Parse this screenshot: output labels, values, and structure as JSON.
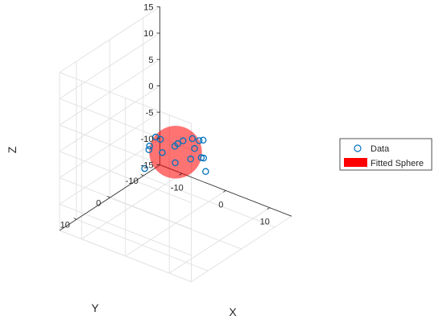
{
  "chart_data": {
    "type": "scatter3d",
    "axes": {
      "x": {
        "label": "X",
        "range": [
          -15,
          15
        ],
        "ticks": [
          -10,
          0,
          10
        ]
      },
      "y": {
        "label": "Y",
        "range": [
          -15,
          15
        ],
        "ticks": [
          -10,
          0,
          10
        ]
      },
      "z": {
        "label": "Z",
        "range": [
          -15,
          15
        ],
        "ticks": [
          -15,
          -10,
          -5,
          0,
          5,
          10,
          15
        ]
      }
    },
    "grid": true,
    "view": {
      "azimuth": -37.5,
      "elevation": 30
    },
    "legend": {
      "placement": "right",
      "entries": [
        {
          "label": "Data",
          "marker": "circle",
          "color": "#0072BD"
        },
        {
          "label": "Fitted Sphere",
          "marker": "patch",
          "color": "#FF0000"
        }
      ]
    },
    "series": [
      {
        "name": "Data",
        "type": "scatter",
        "color": "#0072BD",
        "points": [
          [
            -0.5,
            3.9,
            2.4
          ],
          [
            3.3,
            2.1,
            2.6
          ],
          [
            5.2,
            -0.2,
            2.3
          ],
          [
            -3.8,
            2.8,
            -0.4
          ],
          [
            -2.5,
            4.7,
            0.1
          ],
          [
            1.1,
            0.8,
            0.8
          ],
          [
            4.1,
            -0.3,
            0.4
          ],
          [
            3.6,
            -3.5,
            0.5
          ],
          [
            -4.3,
            0.3,
            0.1
          ],
          [
            -2.5,
            0.7,
            -2.1
          ],
          [
            -1.4,
            -1.6,
            -1.5
          ],
          [
            0.7,
            -4.1,
            -0.4
          ],
          [
            2.8,
            -4.0,
            -3.3
          ],
          [
            3.1,
            -4.3,
            -3.4
          ],
          [
            -1.3,
            -1.6,
            -4.6
          ],
          [
            -4.3,
            3.6,
            -4.5
          ],
          [
            1.0,
            -3.2,
            -3.8
          ],
          [
            5.4,
            -1.9,
            -4.2
          ]
        ]
      },
      {
        "name": "Fitted Sphere",
        "type": "sphere",
        "center": [
          0,
          0,
          -1.5
        ],
        "radius": 5,
        "color": "#FF0000",
        "opacity": 0.55
      }
    ]
  }
}
